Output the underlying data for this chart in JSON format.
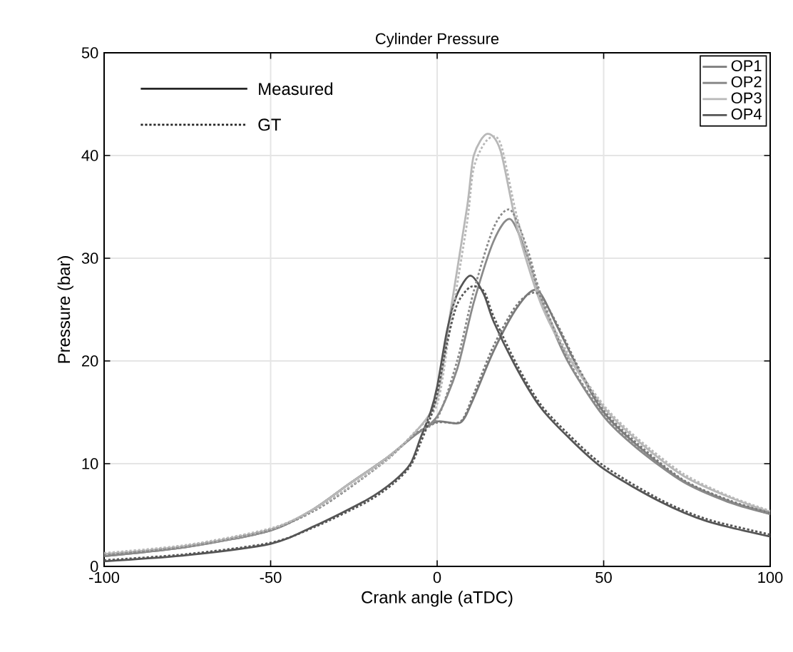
{
  "chart_data": {
    "type": "line",
    "title": "Cylinder Pressure",
    "xlabel": "Crank angle (aTDC)",
    "ylabel": "Pressure (bar)",
    "xlim": [
      -100,
      100
    ],
    "ylim": [
      0,
      50
    ],
    "xticks": [
      -100,
      -50,
      0,
      50,
      100
    ],
    "yticks": [
      0,
      10,
      20,
      30,
      40,
      50
    ],
    "grid": true,
    "legend": "top right",
    "annotations": [
      "Measured",
      "GT"
    ],
    "series": [
      {
        "name": "OP1",
        "color": "#7a7a7a",
        "line_style": "solid",
        "x": [
          -100,
          -75,
          -50,
          -37,
          -27,
          -15,
          -7,
          0,
          7,
          11,
          17,
          24,
          30,
          36,
          43,
          50,
          60,
          74,
          88,
          100
        ],
        "values": [
          1.0,
          1.9,
          3.5,
          5.6,
          7.9,
          10.6,
          12.7,
          14.1,
          14.0,
          16.4,
          21,
          25.2,
          26.9,
          23.4,
          18.8,
          15,
          11.8,
          8.3,
          6.3,
          5.1
        ]
      },
      {
        "name": "OP2",
        "color": "#8a8a8a",
        "line_style": "solid",
        "x": [
          -100,
          -75,
          -50,
          -37,
          -27,
          -15,
          -7,
          0,
          6,
          11,
          17,
          22,
          27,
          31,
          39,
          50,
          60,
          74,
          88,
          100
        ],
        "values": [
          1.0,
          1.9,
          3.5,
          5.6,
          7.9,
          10.6,
          12.7,
          14.6,
          19.2,
          25.7,
          31.7,
          33.8,
          30.3,
          26.2,
          20.1,
          14.6,
          11.5,
          8.2,
          6.2,
          5.1
        ]
      },
      {
        "name": "OP3",
        "color": "#b8b8b8",
        "line_style": "solid",
        "x": [
          -100,
          -75,
          -50,
          -37,
          -27,
          -15,
          -7,
          0,
          4,
          9,
          11,
          15,
          19,
          24,
          31,
          39,
          50,
          60,
          74,
          88,
          100
        ],
        "values": [
          1.2,
          2.0,
          3.6,
          5.6,
          7.9,
          10.6,
          12.9,
          16.4,
          24.8,
          35,
          40,
          42.1,
          40.5,
          33,
          25.7,
          20.6,
          15.5,
          12.3,
          8.8,
          6.7,
          5.3
        ]
      },
      {
        "name": "OP4",
        "color": "#555555",
        "line_style": "solid",
        "x": [
          -100,
          -75,
          -50,
          -37,
          -21,
          -13,
          -8,
          -5,
          -2,
          0,
          3,
          6,
          10,
          14,
          17,
          24,
          31,
          39,
          50,
          67,
          81,
          100
        ],
        "values": [
          0.5,
          1.1,
          2.2,
          3.9,
          6.5,
          8.3,
          10.0,
          12.5,
          15,
          17.5,
          23,
          26.5,
          28.3,
          26.5,
          23.8,
          19.2,
          15.5,
          12.7,
          9.5,
          6.3,
          4.4,
          2.9
        ]
      },
      {
        "color": "#7a7a7a",
        "line_style": "dotted",
        "x": [
          -100,
          -75,
          -50,
          -37,
          -27,
          -15,
          -7,
          0,
          7,
          11,
          17,
          24,
          30,
          36,
          43,
          50,
          60,
          74,
          88,
          100
        ],
        "values": [
          1.1,
          2.0,
          3.6,
          5.4,
          7.5,
          10.4,
          12.8,
          14.0,
          14.1,
          16.8,
          21.5,
          25.5,
          26.6,
          23.6,
          19.0,
          15.2,
          12.0,
          8.4,
          6.4,
          5.2
        ]
      },
      {
        "color": "#8a8a8a",
        "line_style": "dotted",
        "x": [
          -100,
          -75,
          -50,
          -37,
          -27,
          -15,
          -7,
          0,
          6,
          11,
          17,
          22,
          27,
          31,
          39,
          50,
          60,
          74,
          88,
          100
        ],
        "values": [
          1.1,
          2.0,
          3.6,
          5.4,
          7.5,
          10.4,
          12.8,
          14.4,
          20,
          26.8,
          33,
          34.7,
          31,
          26.6,
          20.3,
          14.8,
          11.7,
          8.3,
          6.3,
          5.2
        ]
      },
      {
        "color": "#b8b8b8",
        "line_style": "dotted",
        "x": [
          -100,
          -75,
          -50,
          -37,
          -27,
          -15,
          -7,
          0,
          4,
          9,
          11,
          15,
          19,
          24,
          31,
          39,
          50,
          60,
          74,
          88,
          100
        ],
        "values": [
          1.3,
          2.1,
          3.7,
          5.5,
          7.6,
          10.4,
          13,
          15.8,
          23.5,
          33.5,
          38.8,
          41.5,
          41.2,
          34,
          26.2,
          20.9,
          15.7,
          12.5,
          9,
          6.8,
          5.4
        ]
      },
      {
        "color": "#555555",
        "line_style": "dotted",
        "x": [
          -100,
          -75,
          -50,
          -37,
          -21,
          -13,
          -8,
          -5,
          -2,
          0,
          3,
          6,
          10,
          14,
          17,
          24,
          31,
          39,
          50,
          67,
          81,
          100
        ],
        "values": [
          0.6,
          1.2,
          2.3,
          3.8,
          6.3,
          8.1,
          9.8,
          12,
          14.5,
          16.8,
          21.8,
          25.5,
          27.2,
          26.8,
          24.3,
          19.6,
          15.8,
          13,
          9.8,
          6.5,
          4.6,
          3.1
        ]
      }
    ]
  }
}
